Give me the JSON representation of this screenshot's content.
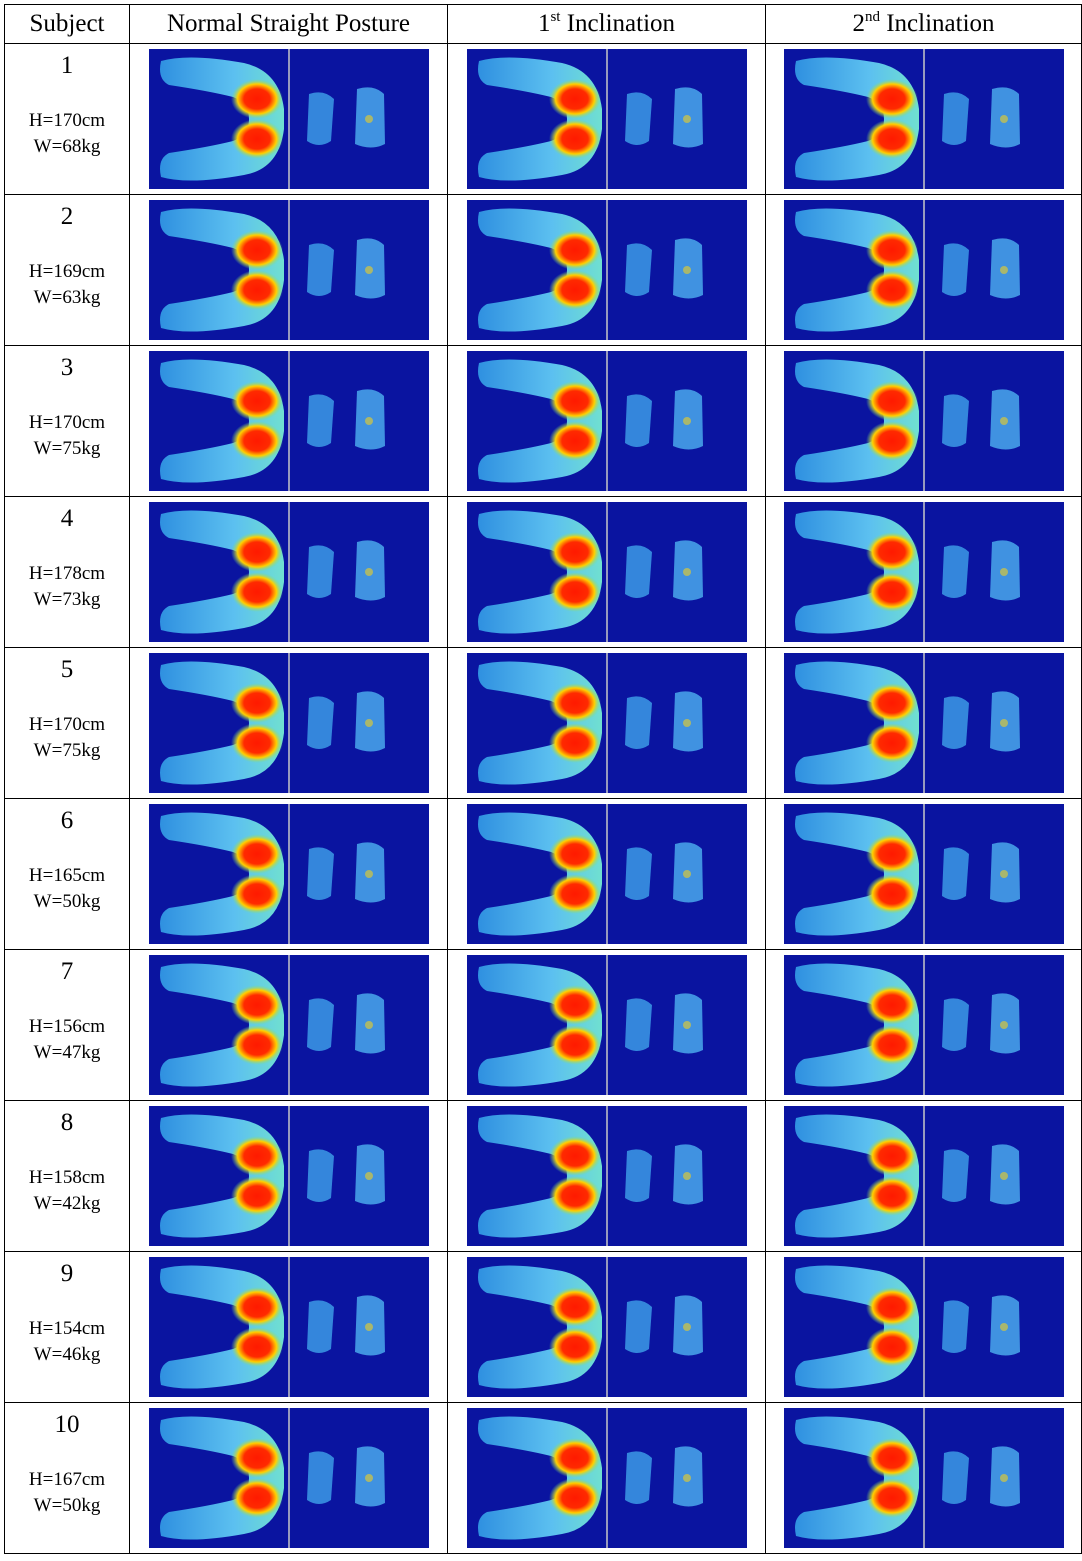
{
  "table": {
    "header": {
      "subject": "Subject",
      "normal": "Normal Straight Posture",
      "first": {
        "number": "1",
        "suffix": "st",
        "rest": "Inclination"
      },
      "second": {
        "number": "2",
        "suffix": "nd",
        "rest": "Inclination"
      }
    },
    "rows": [
      {
        "subject": "1",
        "height": "H=170cm",
        "weight": "W=68kg"
      },
      {
        "subject": "2",
        "height": "H=169cm",
        "weight": "W=63kg"
      },
      {
        "subject": "3",
        "height": "H=170cm",
        "weight": "W=75kg"
      },
      {
        "subject": "4",
        "height": "H=178cm",
        "weight": "W=73kg"
      },
      {
        "subject": "5",
        "height": "H=170cm",
        "weight": "W=75kg"
      },
      {
        "subject": "6",
        "height": "H=165cm",
        "weight": "W=50kg"
      },
      {
        "subject": "7",
        "height": "H=156cm",
        "weight": "W=47kg"
      },
      {
        "subject": "8",
        "height": "H=158cm",
        "weight": "W=42kg"
      },
      {
        "subject": "9",
        "height": "H=154cm",
        "weight": "W=46kg"
      },
      {
        "subject": "10",
        "height": "H=167cm",
        "weight": "W=50kg"
      }
    ]
  }
}
